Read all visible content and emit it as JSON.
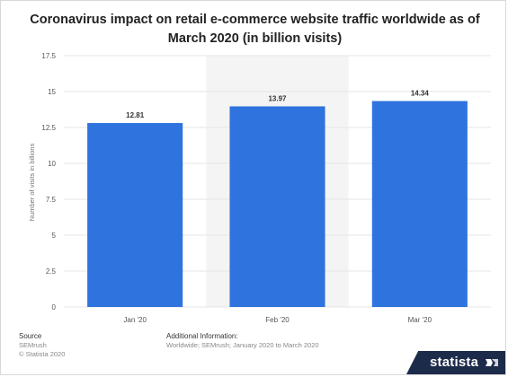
{
  "chart_data": {
    "type": "bar",
    "title": "Coronavirus impact on retail e-commerce website traffic worldwide as of March 2020 (in billion visits)",
    "categories": [
      "Jan '20",
      "Feb '20",
      "Mar '20"
    ],
    "values": [
      12.81,
      13.97,
      14.34
    ],
    "value_labels": [
      "12.81",
      "13.97",
      "14.34"
    ],
    "xlabel": "",
    "ylabel": "Number of visits in billions",
    "ylim": [
      0,
      17.5
    ],
    "yticks": [
      0,
      2.5,
      5,
      7.5,
      10,
      12.5,
      15,
      17.5
    ],
    "ytick_labels": [
      "0",
      "2.5",
      "5",
      "7.5",
      "10",
      "12.5",
      "15",
      "17.5"
    ],
    "grid": true,
    "highlighted_category": "Feb '20",
    "bar_color": "#2f73df"
  },
  "footer": {
    "source_label": "Source",
    "source_name": "SEMrush",
    "copyright": "© Statista 2020",
    "additional_label": "Additional Information:",
    "additional_text": "Worldwide; SEMrush; January 2020 to March 2020"
  },
  "brand": {
    "name": "statista",
    "icon": "statista-logo-icon",
    "color": "#1d2b4a"
  },
  "colors": {
    "grid": "#e6e6e6",
    "highlight_band": "#f4f4f4",
    "axis_text": "#555555",
    "label_text": "#333333"
  }
}
